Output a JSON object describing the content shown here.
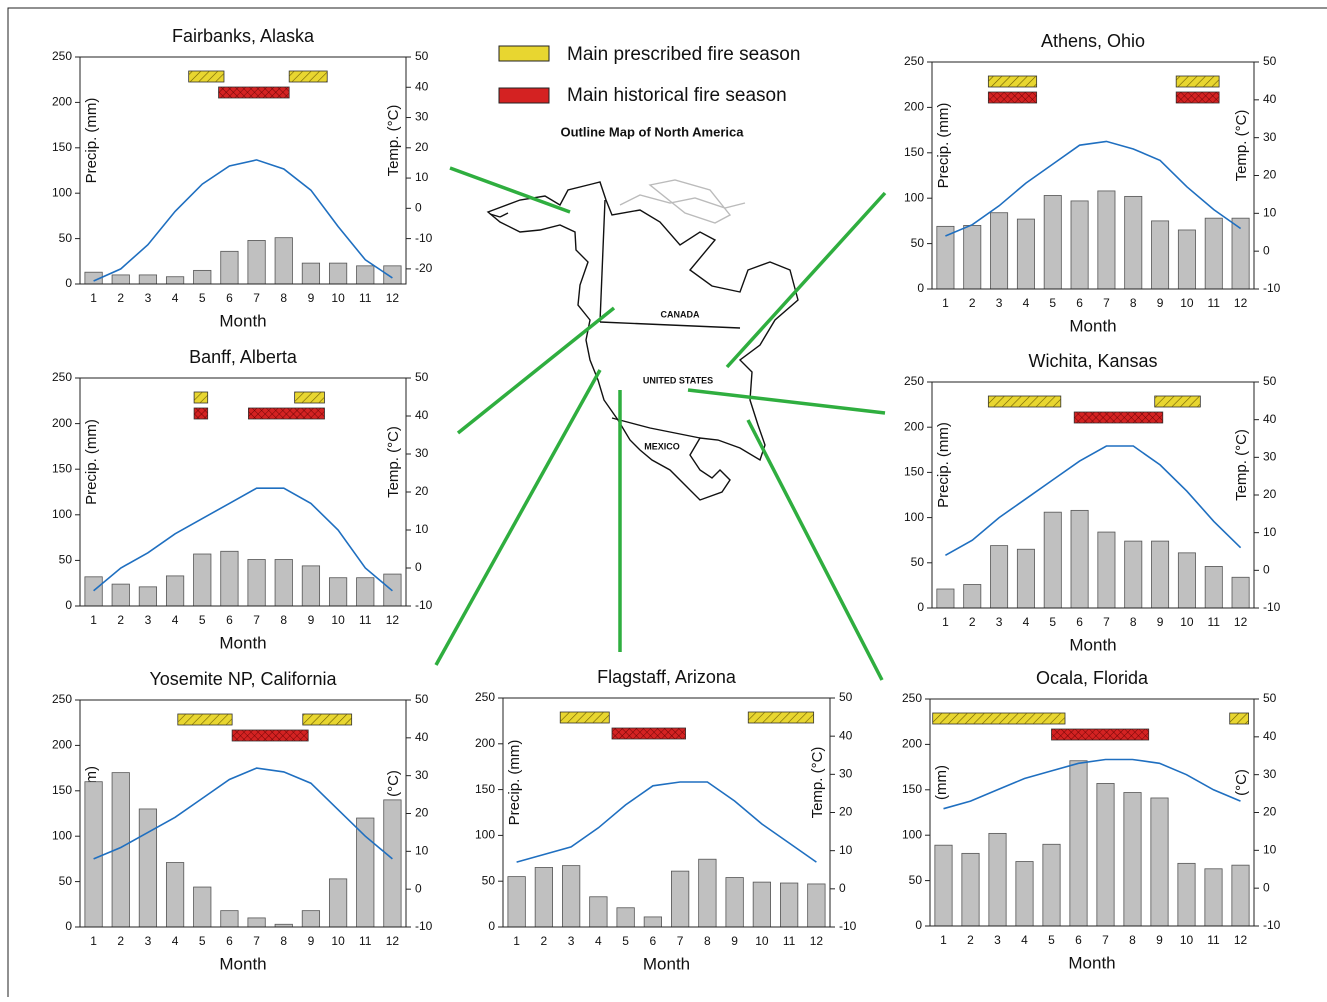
{
  "legend": {
    "prescribed": {
      "label": "Main prescribed fire season",
      "color": "#e8d630"
    },
    "historical": {
      "label": "Main historical fire season",
      "color": "#d42222"
    }
  },
  "map": {
    "title": "Outline Map of North America",
    "labels": [
      "CANADA",
      "UNITED STATES",
      "MEXICO"
    ]
  },
  "chart_data": [
    {
      "type": "climate",
      "title": "Fairbanks, Alaska",
      "x_label": "Month",
      "y_label": "Precip. (mm)",
      "y2_label": "Temp. (°C)",
      "categories": [
        1,
        2,
        3,
        4,
        5,
        6,
        7,
        8,
        9,
        10,
        11,
        12
      ],
      "series": [
        {
          "color": "#c0c0c0",
          "values": [
            13,
            10,
            10,
            8,
            15,
            36,
            48,
            51,
            23,
            23,
            20,
            20
          ]
        },
        {
          "color": "#1f6fc0",
          "axis": "y2",
          "values": [
            -24,
            -20,
            -12,
            -1,
            8,
            14,
            16,
            13,
            6,
            -6,
            -17,
            -23
          ]
        }
      ],
      "ylim": [
        0,
        250
      ],
      "yticks": [
        0,
        50,
        100,
        150,
        200,
        250
      ],
      "y2lim": [
        -25,
        50
      ],
      "y2ticks": [
        -20,
        -10,
        0,
        10,
        20,
        30,
        40,
        50
      ],
      "fire_seasons": {
        "prescribed": [
          [
            4.5,
            5.8
          ],
          [
            8.2,
            9.6
          ]
        ],
        "historical": [
          [
            5.6,
            8.2
          ]
        ]
      }
    },
    {
      "type": "climate",
      "title": "Banff, Alberta",
      "x_label": "Month",
      "y_label": "Precip. (mm)",
      "y2_label": "Temp. (°C)",
      "categories": [
        1,
        2,
        3,
        4,
        5,
        6,
        7,
        8,
        9,
        10,
        11,
        12
      ],
      "series": [
        {
          "color": "#c0c0c0",
          "values": [
            32,
            24,
            21,
            33,
            57,
            60,
            51,
            51,
            44,
            31,
            31,
            35
          ]
        },
        {
          "color": "#1f6fc0",
          "axis": "y2",
          "values": [
            -6,
            0,
            4,
            9,
            13,
            17,
            21,
            21,
            17,
            10,
            0,
            -6
          ]
        }
      ],
      "ylim": [
        0,
        250
      ],
      "yticks": [
        0,
        50,
        100,
        150,
        200,
        250
      ],
      "y2lim": [
        -10,
        50
      ],
      "y2ticks": [
        -10,
        0,
        10,
        20,
        30,
        40,
        50
      ],
      "fire_seasons": {
        "prescribed": [
          [
            4.7,
            5.2
          ],
          [
            8.4,
            9.5
          ]
        ],
        "historical": [
          [
            4.7,
            5.2
          ],
          [
            6.7,
            9.5
          ]
        ]
      }
    },
    {
      "type": "climate",
      "title": "Yosemite NP, California",
      "x_label": "Month",
      "y_label": "(mm)",
      "y2_label": "(°C)",
      "categories": [
        1,
        2,
        3,
        4,
        5,
        6,
        7,
        8,
        9,
        10,
        11,
        12
      ],
      "series": [
        {
          "color": "#c0c0c0",
          "values": [
            160,
            170,
            130,
            71,
            44,
            18,
            10,
            3,
            18,
            53,
            120,
            140
          ]
        },
        {
          "color": "#1f6fc0",
          "axis": "y2",
          "values": [
            8,
            11,
            15,
            19,
            24,
            29,
            32,
            31,
            28,
            21,
            14,
            8
          ]
        }
      ],
      "ylim": [
        0,
        250
      ],
      "yticks": [
        0,
        50,
        100,
        150,
        200,
        250
      ],
      "y2lim": [
        -10,
        50
      ],
      "y2ticks": [
        -10,
        0,
        10,
        20,
        30,
        40,
        50
      ],
      "fire_seasons": {
        "prescribed": [
          [
            4.1,
            6.1
          ],
          [
            8.7,
            10.5
          ]
        ],
        "historical": [
          [
            6.1,
            8.9
          ]
        ]
      }
    },
    {
      "type": "climate",
      "title": "Flagstaff, Arizona",
      "x_label": "Month",
      "y_label": "Precip. (mm)",
      "y2_label": "Temp. (°C)",
      "categories": [
        1,
        2,
        3,
        4,
        5,
        6,
        7,
        8,
        9,
        10,
        11,
        12
      ],
      "series": [
        {
          "color": "#c0c0c0",
          "values": [
            55,
            65,
            67,
            33,
            21,
            11,
            61,
            74,
            54,
            49,
            48,
            47
          ]
        },
        {
          "color": "#1f6fc0",
          "axis": "y2",
          "values": [
            7,
            9,
            11,
            16,
            22,
            27,
            28,
            28,
            23,
            17,
            12,
            7
          ]
        }
      ],
      "ylim": [
        0,
        250
      ],
      "yticks": [
        0,
        50,
        100,
        150,
        200,
        250
      ],
      "y2lim": [
        -10,
        50
      ],
      "y2ticks": [
        -10,
        0,
        10,
        20,
        30,
        40,
        50
      ],
      "fire_seasons": {
        "prescribed": [
          [
            2.6,
            4.4
          ],
          [
            9.5,
            11.9
          ]
        ],
        "historical": [
          [
            4.5,
            7.2
          ]
        ]
      }
    },
    {
      "type": "climate",
      "title": "Athens, Ohio",
      "x_label": "Month",
      "y_label": "Precip. (mm)",
      "y2_label": "Temp. (°C)",
      "categories": [
        1,
        2,
        3,
        4,
        5,
        6,
        7,
        8,
        9,
        10,
        11,
        12
      ],
      "series": [
        {
          "color": "#c0c0c0",
          "values": [
            69,
            70,
            84,
            77,
            103,
            97,
            108,
            102,
            75,
            65,
            78,
            78
          ]
        },
        {
          "color": "#1f6fc0",
          "axis": "y2",
          "values": [
            4,
            7,
            12,
            18,
            23,
            28,
            29,
            27,
            24,
            17,
            11,
            6
          ]
        }
      ],
      "ylim": [
        0,
        250
      ],
      "yticks": [
        0,
        50,
        100,
        150,
        200,
        250
      ],
      "y2lim": [
        -10,
        50
      ],
      "y2ticks": [
        -10,
        0,
        10,
        20,
        30,
        40,
        50
      ],
      "fire_seasons": {
        "prescribed": [
          [
            2.6,
            4.4
          ],
          [
            9.6,
            11.2
          ]
        ],
        "historical": [
          [
            2.6,
            4.4
          ],
          [
            9.6,
            11.2
          ]
        ]
      }
    },
    {
      "type": "climate",
      "title": "Wichita, Kansas",
      "x_label": "Month",
      "y_label": "Precip. (mm)",
      "y2_label": "Temp. (°C)",
      "categories": [
        1,
        2,
        3,
        4,
        5,
        6,
        7,
        8,
        9,
        10,
        11,
        12
      ],
      "series": [
        {
          "color": "#c0c0c0",
          "values": [
            21,
            26,
            69,
            65,
            106,
            108,
            84,
            74,
            74,
            61,
            46,
            34
          ]
        },
        {
          "color": "#1f6fc0",
          "axis": "y2",
          "values": [
            4,
            8,
            14,
            19,
            24,
            29,
            33,
            33,
            28,
            21,
            13,
            6
          ]
        }
      ],
      "ylim": [
        0,
        250
      ],
      "yticks": [
        0,
        50,
        100,
        150,
        200,
        250
      ],
      "y2lim": [
        -10,
        50
      ],
      "y2ticks": [
        -10,
        0,
        10,
        20,
        30,
        40,
        50
      ],
      "fire_seasons": {
        "prescribed": [
          [
            2.6,
            5.3
          ],
          [
            8.8,
            10.5
          ]
        ],
        "historical": [
          [
            5.8,
            9.1
          ]
        ]
      }
    },
    {
      "type": "climate",
      "title": "Ocala, Florida",
      "x_label": "Month",
      "y_label": "(mm)",
      "y2_label": "(°C)",
      "categories": [
        1,
        2,
        3,
        4,
        5,
        6,
        7,
        8,
        9,
        10,
        11,
        12
      ],
      "series": [
        {
          "color": "#c0c0c0",
          "values": [
            89,
            80,
            102,
            71,
            90,
            182,
            157,
            147,
            141,
            69,
            63,
            67
          ]
        },
        {
          "color": "#1f6fc0",
          "axis": "y2",
          "values": [
            21,
            23,
            26,
            29,
            31,
            33,
            34,
            34,
            33,
            30,
            26,
            23
          ]
        }
      ],
      "ylim": [
        0,
        250
      ],
      "yticks": [
        0,
        50,
        100,
        150,
        200,
        250
      ],
      "y2lim": [
        -10,
        50
      ],
      "y2ticks": [
        -10,
        0,
        10,
        20,
        30,
        40,
        50
      ],
      "fire_seasons": {
        "prescribed": [
          [
            0.6,
            5.5
          ],
          [
            11.6,
            12.3
          ]
        ],
        "historical": [
          [
            5.0,
            8.6
          ]
        ]
      }
    }
  ]
}
